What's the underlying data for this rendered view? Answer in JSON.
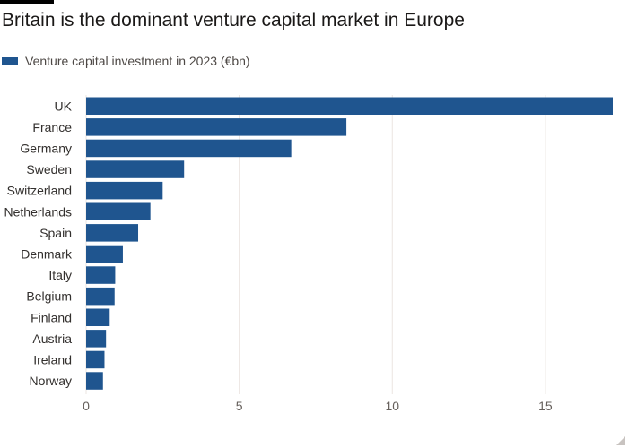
{
  "title": "Britain is the dominant venture capital market in Europe",
  "colors": {
    "bar": "#1f558f",
    "grid": "#ebe5e1",
    "axis_text": "#66605c",
    "label_text": "#33302e"
  },
  "chart_data": {
    "type": "bar",
    "orientation": "horizontal",
    "title": "Britain is the dominant venture capital market in Europe",
    "series": [
      {
        "name": "Venture capital investment in 2023 (€bn)",
        "values": [
          17.2,
          8.5,
          6.7,
          3.2,
          2.5,
          2.1,
          1.7,
          1.2,
          0.95,
          0.93,
          0.77,
          0.65,
          0.6,
          0.55
        ]
      }
    ],
    "categories": [
      "UK",
      "France",
      "Germany",
      "Sweden",
      "Switzerland",
      "Netherlands",
      "Spain",
      "Denmark",
      "Italy",
      "Belgium",
      "Finland",
      "Austria",
      "Ireland",
      "Norway"
    ],
    "xticks": [
      0,
      5,
      10,
      15
    ],
    "xlim": [
      0,
      17.2
    ],
    "xlabel": "",
    "ylabel": "",
    "grid": true,
    "legend": "top-left"
  }
}
